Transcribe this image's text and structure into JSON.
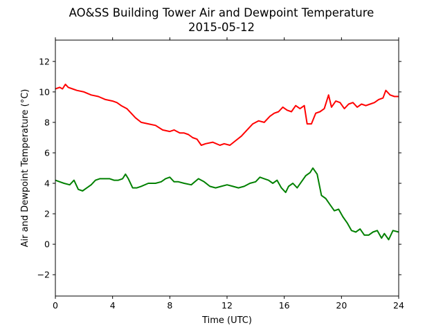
{
  "chart_data": {
    "type": "line",
    "title": "AO&SS Building Tower Air and Dewpoint Temperature",
    "subtitle": "2015-05-12",
    "xlabel": "Time (UTC)",
    "ylabel": "Air and Dewpoint Temperature (°C)",
    "xlim": [
      0,
      24
    ],
    "ylim": [
      -3.4,
      13.4
    ],
    "xticks": [
      0,
      4,
      8,
      12,
      16,
      20,
      24
    ],
    "yticks": [
      -2,
      0,
      2,
      4,
      6,
      8,
      10,
      12
    ],
    "grid": false,
    "series": [
      {
        "color": "#ff0000",
        "x": [
          0,
          0.3,
          0.5,
          0.7,
          0.9,
          1.2,
          1.5,
          2.0,
          2.5,
          3.0,
          3.5,
          4.0,
          4.3,
          4.6,
          5.0,
          5.3,
          5.6,
          6.0,
          6.5,
          7.0,
          7.5,
          8.0,
          8.3,
          8.7,
          9.0,
          9.3,
          9.6,
          9.9,
          10.2,
          10.5,
          11.0,
          11.5,
          11.8,
          12.2,
          12.6,
          13.0,
          13.4,
          13.8,
          14.2,
          14.6,
          15.0,
          15.3,
          15.6,
          15.9,
          16.2,
          16.5,
          16.8,
          17.1,
          17.4,
          17.6,
          17.9,
          18.2,
          18.5,
          18.8,
          19.1,
          19.3,
          19.6,
          19.9,
          20.2,
          20.5,
          20.8,
          21.1,
          21.4,
          21.7,
          22.0,
          22.3,
          22.6,
          22.9,
          23.1,
          23.4,
          23.7,
          24.0
        ],
        "values": [
          10.2,
          10.3,
          10.2,
          10.5,
          10.3,
          10.2,
          10.1,
          10.0,
          9.8,
          9.7,
          9.5,
          9.4,
          9.3,
          9.1,
          8.9,
          8.6,
          8.3,
          8.0,
          7.9,
          7.8,
          7.5,
          7.4,
          7.5,
          7.3,
          7.3,
          7.2,
          7.0,
          6.9,
          6.5,
          6.6,
          6.7,
          6.5,
          6.6,
          6.5,
          6.8,
          7.1,
          7.5,
          7.9,
          8.1,
          8.0,
          8.4,
          8.6,
          8.7,
          9.0,
          8.8,
          8.7,
          9.1,
          8.9,
          9.1,
          7.9,
          7.9,
          8.6,
          8.7,
          8.9,
          9.8,
          9.0,
          9.4,
          9.3,
          8.9,
          9.2,
          9.3,
          9.0,
          9.2,
          9.1,
          9.2,
          9.3,
          9.5,
          9.6,
          10.1,
          9.8,
          9.7,
          9.7
        ]
      },
      {
        "color": "#008000",
        "x": [
          0,
          0.3,
          0.6,
          1.0,
          1.3,
          1.6,
          1.9,
          2.2,
          2.5,
          2.8,
          3.1,
          3.5,
          3.8,
          4.1,
          4.4,
          4.7,
          4.9,
          5.1,
          5.4,
          5.7,
          6.0,
          6.5,
          7.0,
          7.4,
          7.7,
          8.0,
          8.3,
          8.6,
          9.0,
          9.5,
          10.0,
          10.4,
          10.8,
          11.2,
          11.6,
          12.0,
          12.4,
          12.8,
          13.2,
          13.6,
          14.0,
          14.3,
          14.6,
          14.9,
          15.2,
          15.5,
          15.8,
          16.1,
          16.3,
          16.6,
          16.9,
          17.2,
          17.5,
          17.8,
          18.0,
          18.3,
          18.6,
          18.9,
          19.2,
          19.5,
          19.8,
          20.1,
          20.4,
          20.7,
          21.0,
          21.3,
          21.6,
          21.9,
          22.2,
          22.5,
          22.8,
          23.0,
          23.3,
          23.6,
          24.0
        ],
        "values": [
          4.2,
          4.1,
          4.0,
          3.9,
          4.2,
          3.6,
          3.5,
          3.7,
          3.9,
          4.2,
          4.3,
          4.3,
          4.3,
          4.2,
          4.2,
          4.3,
          4.6,
          4.3,
          3.7,
          3.7,
          3.8,
          4.0,
          4.0,
          4.1,
          4.3,
          4.4,
          4.1,
          4.1,
          4.0,
          3.9,
          4.3,
          4.1,
          3.8,
          3.7,
          3.8,
          3.9,
          3.8,
          3.7,
          3.8,
          4.0,
          4.1,
          4.4,
          4.3,
          4.2,
          4.0,
          4.2,
          3.7,
          3.4,
          3.8,
          4.0,
          3.7,
          4.1,
          4.5,
          4.7,
          5.0,
          4.6,
          3.2,
          3.0,
          2.6,
          2.2,
          2.3,
          1.8,
          1.4,
          0.9,
          0.8,
          1.0,
          0.6,
          0.6,
          0.8,
          0.9,
          0.4,
          0.7,
          0.3,
          0.9,
          0.8
        ]
      }
    ]
  }
}
